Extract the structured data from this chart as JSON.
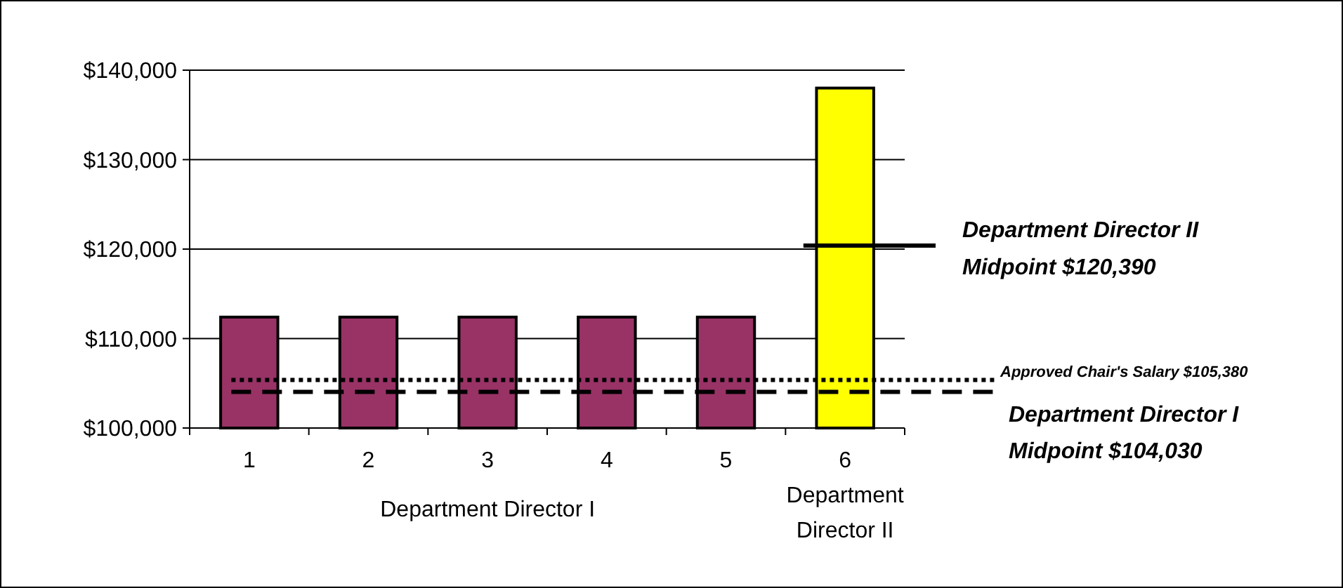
{
  "chart_data": {
    "type": "bar",
    "categories": [
      "1",
      "2",
      "3",
      "4",
      "5",
      "6"
    ],
    "values": [
      112400,
      112400,
      112400,
      112400,
      112400,
      138000
    ],
    "colors": [
      "#993366",
      "#993366",
      "#993366",
      "#993366",
      "#993366",
      "#ffff00"
    ],
    "ylim": [
      100000,
      140000
    ],
    "yticks": [
      {
        "value": 100000,
        "label": "$100,000"
      },
      {
        "value": 110000,
        "label": "$110,000"
      },
      {
        "value": 120000,
        "label": "$120,000"
      },
      {
        "value": 130000,
        "label": "$130,000"
      },
      {
        "value": 140000,
        "label": "$140,000"
      }
    ],
    "grid": "y",
    "ref_lines": [
      {
        "axis": "y",
        "value": 120390,
        "label": "Department Director II\nMidpoint $120,390",
        "line_style": "solid"
      },
      {
        "axis": "y",
        "value": 105380,
        "label": "Approved Chair's Salary $105,380",
        "line_style": "dotted"
      },
      {
        "axis": "y",
        "value": 104030,
        "label": "Department Director I\nMidpoint $104,030",
        "line_style": "dashed"
      }
    ],
    "annotations": [
      "Department Director I",
      "Department\nDirector II"
    ]
  }
}
